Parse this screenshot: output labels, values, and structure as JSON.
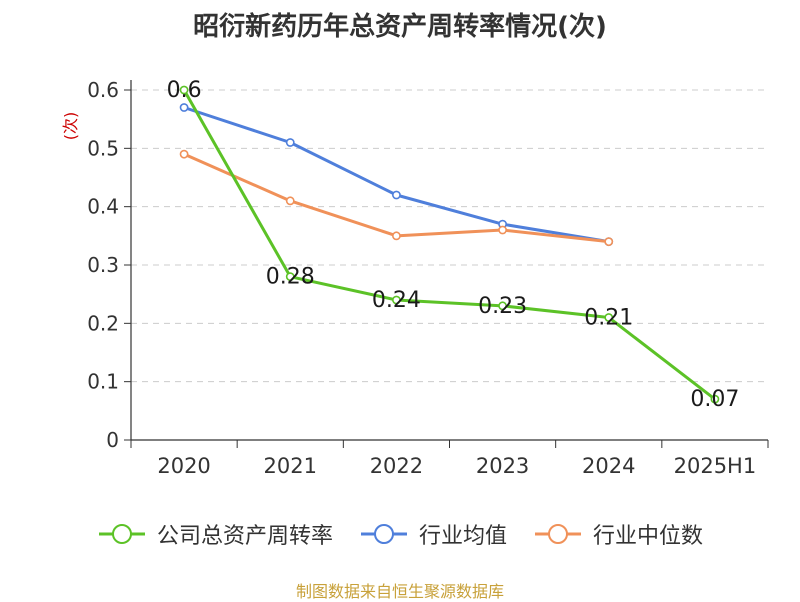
{
  "chart_data": {
    "type": "line",
    "title": "昭衍新药历年总资产周转率情况(次)",
    "ylabel": "(次)",
    "xlabel": "",
    "categories": [
      "2020",
      "2021",
      "2022",
      "2023",
      "2024",
      "2025H1"
    ],
    "ylim": [
      0,
      0.6
    ],
    "yticks": [
      "0",
      "0.1",
      "0.2",
      "0.3",
      "0.4",
      "0.5",
      "0.6"
    ],
    "grid": true,
    "legend_position": "bottom",
    "series": [
      {
        "name": "公司总资产周转率",
        "color": "#5cc227",
        "values": [
          0.6,
          0.28,
          0.24,
          0.23,
          0.21,
          0.07
        ],
        "labels": [
          "0.6",
          "0.28",
          "0.24",
          "0.23",
          "0.21",
          "0.07"
        ]
      },
      {
        "name": "行业均值",
        "color": "#4f7fdb",
        "values": [
          0.57,
          0.51,
          0.42,
          0.37,
          0.34,
          null
        ]
      },
      {
        "name": "行业中位数",
        "color": "#f09159",
        "values": [
          0.49,
          0.41,
          0.35,
          0.36,
          0.34,
          null
        ]
      }
    ]
  },
  "source": "制图数据来自恒生聚源数据库"
}
